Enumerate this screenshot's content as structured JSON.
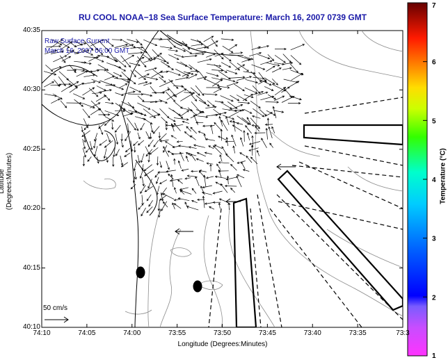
{
  "title": "RU COOL  NOAA−18  Sea Surface Temperature:  March 16, 2007 0739 GMT",
  "xlabel": "Longitude (Degrees:Minutes)",
  "ylabel": "Latitude (Degrees:Minutes)",
  "colorbar_label": "Temperature (°C)",
  "annotation": {
    "line1": "Raw Surface Current",
    "line2": "March 16, 2007 06:00 GMT"
  },
  "scale_label": "50 cm/s",
  "x_ticks": [
    "74:10",
    "74:05",
    "74:00",
    "73:55",
    "73:50",
    "73:45",
    "73:40",
    "73:35",
    "73:3"
  ],
  "y_ticks": [
    "40:35",
    "40:30",
    "40:25",
    "40:20",
    "40:15",
    "40:10"
  ],
  "colorbar_ticks": [
    "1",
    "2",
    "3",
    "4",
    "5",
    "6",
    "7"
  ],
  "colors": {
    "title": "#1a1aa8",
    "vector": "#000000",
    "coast": "#000000",
    "bathy": "#8c8c8c"
  }
}
